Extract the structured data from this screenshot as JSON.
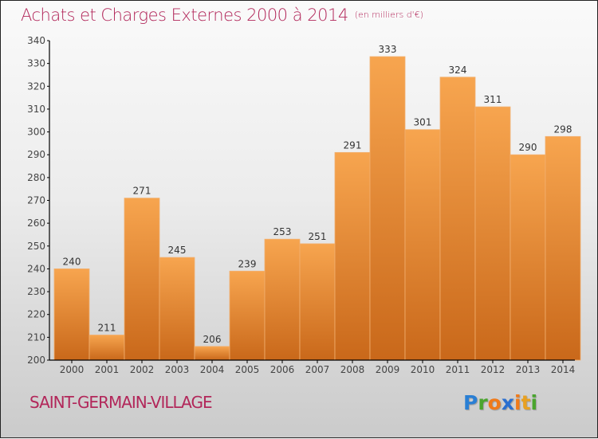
{
  "header": {
    "title": "Achats et Charges Externes 2000 à 2014",
    "unit": "(en milliers d'€)"
  },
  "footer": {
    "town": "SAINT-GERMAIN-VILLAGE",
    "logo_letters": [
      {
        "ch": "P",
        "color": "#2a7fd4"
      },
      {
        "ch": "r",
        "color": "#4aa52e"
      },
      {
        "ch": "o",
        "color": "#f07a1a"
      },
      {
        "ch": "x",
        "color": "#2a6fd0"
      },
      {
        "ch": "i",
        "color": "#f07a1a"
      },
      {
        "ch": "t",
        "color": "#e8a020"
      },
      {
        "ch": "i",
        "color": "#4aa52e"
      }
    ]
  },
  "colors": {
    "title": "#b2275a",
    "bar_top": "#f7a54f",
    "bar_bottom": "#c9681a"
  },
  "chart_data": {
    "type": "bar",
    "title": "Achats et Charges Externes 2000 à 2014",
    "subtitle": "(en milliers d'€)",
    "xlabel": "",
    "ylabel": "",
    "categories": [
      "2000",
      "2001",
      "2002",
      "2003",
      "2004",
      "2005",
      "2006",
      "2007",
      "2008",
      "2009",
      "2010",
      "2011",
      "2012",
      "2013",
      "2014"
    ],
    "values": [
      240,
      211,
      271,
      245,
      206,
      239,
      253,
      251,
      291,
      333,
      301,
      324,
      311,
      290,
      298
    ],
    "ylim": [
      200,
      340
    ],
    "yticks": [
      200,
      210,
      220,
      230,
      240,
      250,
      260,
      270,
      280,
      290,
      300,
      310,
      320,
      330,
      340
    ],
    "grid": false,
    "legend": "none",
    "data_labels": true
  }
}
